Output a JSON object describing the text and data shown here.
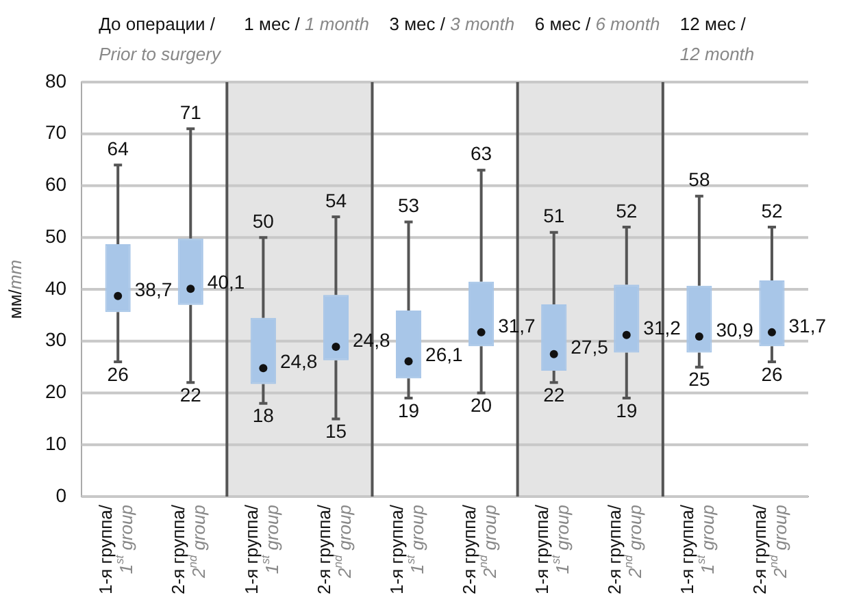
{
  "chart_data": {
    "type": "box",
    "ylabel": "мм/mm",
    "categories": [
      "1-я группа/ 1$^{st}$ group",
      "2-я группа/ 2$^{nd}$ group",
      "1-я группа/ 1$^{st}$ group",
      "2-я группа/ 2$^{nd}$ group",
      "1-я группа/ 1$^{st}$ group",
      "2-я группа/ 2$^{nd}$ group",
      "1-я группа/ 1$^{st}$ group",
      "2-я группа/ 2$^{nd}$ group",
      "1-я группа/ 1$^{st}$ group",
      "2-я группа/ 2$^{nd}$ group"
    ],
    "boxes": [
      {
        "low": 26,
        "q1": 35.6,
        "median": 38.7,
        "q3": 48.7,
        "high": 64
      },
      {
        "low": 22,
        "q1": 37,
        "median": 40.1,
        "q3": 49.8,
        "high": 71
      },
      {
        "low": 18,
        "q1": 21.7,
        "median": 24.8,
        "q3": 34.5,
        "high": 50
      },
      {
        "low": 15,
        "q1": 26.3,
        "median": 28.9,
        "q3": 38.9,
        "high": 54
      },
      {
        "low": 19,
        "q1": 22.8,
        "median": 26.1,
        "q3": 35.9,
        "high": 53
      },
      {
        "low": 20,
        "q1": 29,
        "median": 31.7,
        "q3": 41.5,
        "high": 63
      },
      {
        "low": 22,
        "q1": 24.3,
        "median": 27.5,
        "q3": 37.1,
        "high": 51
      },
      {
        "low": 19,
        "q1": 27.8,
        "median": 31.2,
        "q3": 40.9,
        "high": 52
      },
      {
        "low": 25,
        "q1": 27.8,
        "median": 30.9,
        "q3": 40.7,
        "high": 58
      },
      {
        "low": 26,
        "q1": 29,
        "median": 31.7,
        "q3": 41.7,
        "high": 52
      }
    ],
    "value_labels": [
      [
        "64",
        "38,7",
        "26"
      ],
      [
        "71",
        "40,1",
        "22"
      ],
      [
        "50",
        "24,8",
        "18"
      ],
      [
        "54",
        "24,8",
        "15"
      ],
      [
        "53",
        "26,1",
        "19"
      ],
      [
        "63",
        "31,7",
        "20"
      ],
      [
        "51",
        "27,5",
        "22"
      ],
      [
        "52",
        "31,2",
        "19"
      ],
      [
        "58",
        "30,9",
        "25"
      ],
      [
        "52",
        "31,7",
        "26"
      ]
    ],
    "color": "#a8c6e8",
    "annotations": [
      "До операции / Prior to surgery",
      "1 мес / 1 month",
      "3 мес / 3 month",
      "6 мес / 6 month",
      "12 мес / 12 month"
    ],
    "ylim": [
      0,
      80
    ],
    "yticks": [
      0,
      10,
      20,
      30,
      40,
      50,
      60,
      70,
      80
    ],
    "grid": "y",
    "legend": false,
    "marker": "circle"
  }
}
